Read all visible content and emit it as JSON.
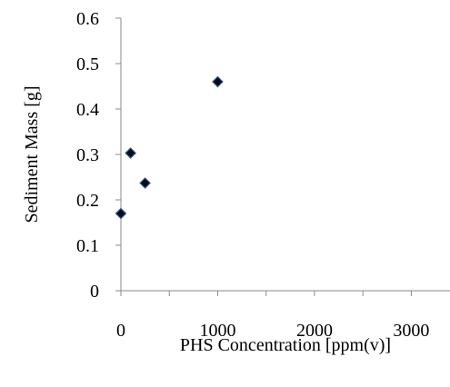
{
  "chart_data": {
    "type": "scatter",
    "title": "",
    "xlabel": "PHS Concentration [ppm(v)]",
    "ylabel": "Sediment Mass [g]",
    "xlim": [
      0,
      3400
    ],
    "ylim": [
      0,
      0.6
    ],
    "xticks": [
      0,
      1000,
      2000,
      3000
    ],
    "xtick_labels": [
      "0",
      "1000",
      "2000",
      "3000"
    ],
    "yticks": [
      0,
      0.1,
      0.2,
      0.3,
      0.4,
      0.5,
      0.6
    ],
    "ytick_labels": [
      "0",
      "0.1",
      "0.2",
      "0.3",
      "0.4",
      "0.5",
      "0.6"
    ],
    "grid": false,
    "legend": "none",
    "marker": "diamond",
    "marker_color": "#0a0a1e",
    "marker_edge_color": "#2f5f8a",
    "series": [
      {
        "x": [
          0,
          100,
          250,
          1000
        ],
        "y": [
          0.17,
          0.303,
          0.237,
          0.46
        ]
      }
    ]
  }
}
